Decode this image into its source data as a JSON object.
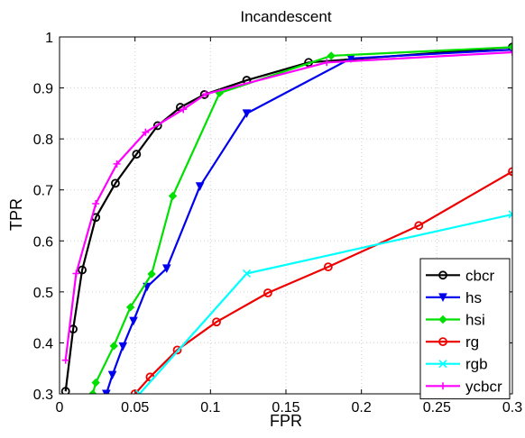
{
  "chart_data": {
    "type": "line",
    "title": "Incandescent",
    "xlabel": "FPR",
    "ylabel": "TPR",
    "xlim": [
      0,
      0.3
    ],
    "ylim": [
      0.3,
      1
    ],
    "xticks": [
      "0",
      "0.05",
      "0.1",
      "0.15",
      "0.2",
      "0.25",
      "0.3"
    ],
    "yticks": [
      "0.3",
      "0.4",
      "0.5",
      "0.6",
      "0.7",
      "0.8",
      "0.9",
      "1"
    ],
    "grid": true,
    "legend_position": "bottom-right",
    "series": [
      {
        "name": "cbcr",
        "color": "#000000",
        "marker": "circle",
        "x": [
          0.004,
          0.009,
          0.015,
          0.024,
          0.037,
          0.051,
          0.065,
          0.08,
          0.096,
          0.124,
          0.165,
          0.3
        ],
        "y": [
          0.305,
          0.427,
          0.543,
          0.646,
          0.713,
          0.77,
          0.826,
          0.862,
          0.887,
          0.915,
          0.95,
          0.98
        ]
      },
      {
        "name": "hs",
        "color": "#0000ee",
        "marker": "triangle-down",
        "x": [
          0.031,
          0.035,
          0.042,
          0.049,
          0.058,
          0.071,
          0.093,
          0.124,
          0.193,
          0.3
        ],
        "y": [
          0.3,
          0.337,
          0.393,
          0.443,
          0.51,
          0.546,
          0.707,
          0.85,
          0.958,
          0.975
        ]
      },
      {
        "name": "hsi",
        "color": "#00e000",
        "marker": "diamond",
        "x": [
          0.022,
          0.024,
          0.036,
          0.047,
          0.061,
          0.075,
          0.106,
          0.18,
          0.3
        ],
        "y": [
          0.3,
          0.322,
          0.394,
          0.47,
          0.535,
          0.688,
          0.89,
          0.963,
          0.98
        ]
      },
      {
        "name": "rg",
        "color": "#ee0000",
        "marker": "circle",
        "x": [
          0.05,
          0.06,
          0.078,
          0.104,
          0.138,
          0.178,
          0.238,
          0.3
        ],
        "y": [
          0.3,
          0.333,
          0.386,
          0.441,
          0.498,
          0.549,
          0.63,
          0.736
        ]
      },
      {
        "name": "rgb",
        "color": "#00ffff",
        "marker": "x",
        "x": [
          0.053,
          0.124,
          0.3
        ],
        "y": [
          0.3,
          0.536,
          0.652
        ]
      },
      {
        "name": "ycbcr",
        "color": "#ff00ff",
        "marker": "plus",
        "x": [
          0.004,
          0.011,
          0.024,
          0.038,
          0.057,
          0.082,
          0.097,
          0.177,
          0.3
        ],
        "y": [
          0.366,
          0.536,
          0.673,
          0.751,
          0.813,
          0.858,
          0.888,
          0.95,
          0.97
        ]
      }
    ]
  }
}
